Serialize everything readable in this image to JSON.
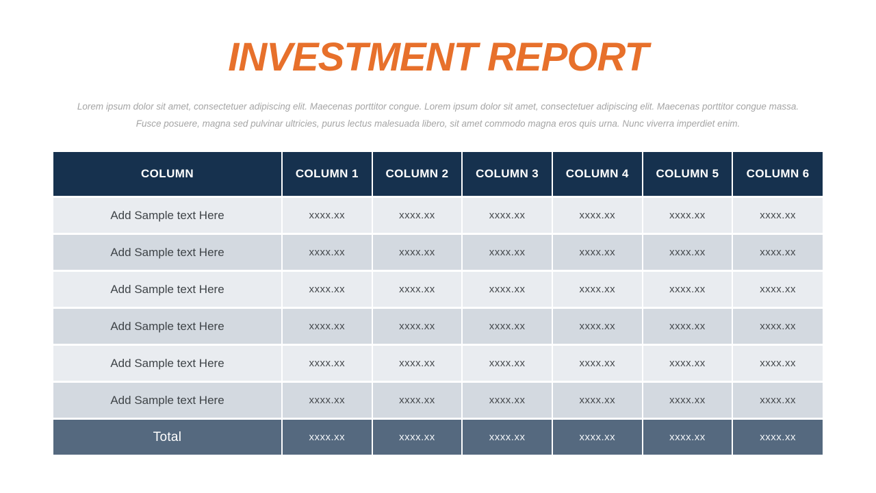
{
  "slide": {
    "title": "INVESTMENT REPORT",
    "subtitle_lines": [
      "Lorem ipsum dolor sit amet, consectetuer adipiscing elit. Maecenas porttitor congue.  Lorem ipsum dolor sit amet, consectetuer adipiscing elit. Maecenas porttitor congue massa.",
      "Fusce posuere, magna sed pulvinar ultricies, purus lectus malesuada libero, sit amet commodo magna eros quis urna. Nunc viverra imperdiet enim."
    ]
  },
  "table": {
    "headers": [
      "COLUMN",
      "COLUMN 1",
      "COLUMN 2",
      "COLUMN 3",
      "COLUMN 4",
      "COLUMN 5",
      "COLUMN 6"
    ],
    "rows": [
      {
        "label": "Add Sample text Here",
        "values": [
          "xxxx.xx",
          "xxxx.xx",
          "xxxx.xx",
          "xxxx.xx",
          "xxxx.xx",
          "xxxx.xx"
        ]
      },
      {
        "label": "Add Sample text Here",
        "values": [
          "xxxx.xx",
          "xxxx.xx",
          "xxxx.xx",
          "xxxx.xx",
          "xxxx.xx",
          "xxxx.xx"
        ]
      },
      {
        "label": "Add Sample text Here",
        "values": [
          "xxxx.xx",
          "xxxx.xx",
          "xxxx.xx",
          "xxxx.xx",
          "xxxx.xx",
          "xxxx.xx"
        ]
      },
      {
        "label": "Add Sample text Here",
        "values": [
          "xxxx.xx",
          "xxxx.xx",
          "xxxx.xx",
          "xxxx.xx",
          "xxxx.xx",
          "xxxx.xx"
        ]
      },
      {
        "label": "Add Sample text Here",
        "values": [
          "xxxx.xx",
          "xxxx.xx",
          "xxxx.xx",
          "xxxx.xx",
          "xxxx.xx",
          "xxxx.xx"
        ]
      },
      {
        "label": "Add Sample text Here",
        "values": [
          "xxxx.xx",
          "xxxx.xx",
          "xxxx.xx",
          "xxxx.xx",
          "xxxx.xx",
          "xxxx.xx"
        ]
      }
    ],
    "total": {
      "label": "Total",
      "values": [
        "xxxx.xx",
        "xxxx.xx",
        "xxxx.xx",
        "xxxx.xx",
        "xxxx.xx",
        "xxxx.xx"
      ]
    }
  },
  "colors": {
    "title_orange": "#E7702B",
    "header_navy": "#16314E",
    "total_slate": "#55697F",
    "row_light": "#E9ECF0",
    "row_dark": "#D3D9E0",
    "subtitle_gray": "#A5A5A5",
    "cell_text": "#3E4347",
    "value_text": "#45494D"
  }
}
